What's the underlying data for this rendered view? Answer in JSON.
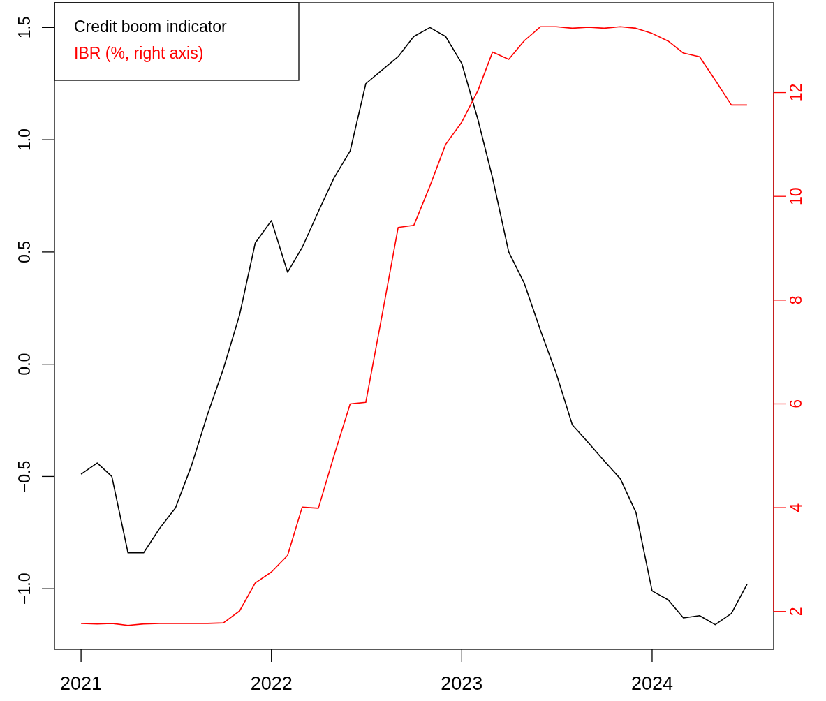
{
  "chart_data": {
    "type": "line",
    "x": [
      "2021-01",
      "2021-02",
      "2021-03",
      "2021-04",
      "2021-05",
      "2021-06",
      "2021-07",
      "2021-08",
      "2021-09",
      "2021-10",
      "2021-11",
      "2021-12",
      "2022-01",
      "2022-02",
      "2022-03",
      "2022-04",
      "2022-05",
      "2022-06",
      "2022-07",
      "2022-08",
      "2022-09",
      "2022-10",
      "2022-11",
      "2022-12",
      "2023-01",
      "2023-02",
      "2023-03",
      "2023-04",
      "2023-05",
      "2023-06",
      "2023-07",
      "2023-08",
      "2023-09",
      "2023-10",
      "2023-11",
      "2023-12",
      "2024-01",
      "2024-02",
      "2024-03",
      "2024-04",
      "2024-05",
      "2024-06",
      "2024-07"
    ],
    "series": [
      {
        "name": "Credit boom indicator",
        "color": "#000000",
        "values": [
          -0.49,
          -0.44,
          -0.5,
          -0.84,
          -0.84,
          -0.73,
          -0.64,
          -0.45,
          -0.22,
          -0.02,
          0.22,
          0.54,
          0.64,
          0.41,
          0.52,
          0.68,
          0.83,
          0.95,
          1.25,
          1.31,
          1.37,
          1.46,
          1.5,
          1.46,
          1.34,
          1.09,
          0.83,
          0.5,
          0.36,
          0.15,
          -0.04,
          -0.27,
          -0.35,
          -0.43,
          -0.51,
          -0.66,
          -1.01,
          -1.05,
          -1.13,
          -1.12,
          -1.16,
          -1.11,
          -0.98
        ]
      },
      {
        "name": "IBR (%, right axis)",
        "color": "#ff0000",
        "axis": "y2",
        "values": [
          1.77,
          1.76,
          1.77,
          1.73,
          1.76,
          1.77,
          1.77,
          1.77,
          1.77,
          1.78,
          2.01,
          2.55,
          2.76,
          3.08,
          4.01,
          3.99,
          5.0,
          6.0,
          6.03,
          7.7,
          9.4,
          9.44,
          10.2,
          11.0,
          11.43,
          12.04,
          12.78,
          12.64,
          13.0,
          13.27,
          13.27,
          13.24,
          13.26,
          13.24,
          13.27,
          13.24,
          13.14,
          12.99,
          12.76,
          12.69,
          12.24,
          11.76,
          11.76
        ]
      }
    ],
    "xlim": [
      "2020-11-11",
      "2024-08-21"
    ],
    "xticks": [
      {
        "value": "2021-01-01",
        "label": "2021"
      },
      {
        "value": "2022-01-01",
        "label": "2022"
      },
      {
        "value": "2023-01-01",
        "label": "2023"
      },
      {
        "value": "2024-01-01",
        "label": "2024"
      }
    ],
    "ylim": [
      -1.27,
      1.61
    ],
    "yticks": [
      {
        "value": -1,
        "label": "−1.0"
      },
      {
        "value": -0.5,
        "label": "−0.5"
      },
      {
        "value": 0,
        "label": "0.0"
      },
      {
        "value": 0.5,
        "label": "0.5"
      },
      {
        "value": 1,
        "label": "1.0"
      },
      {
        "value": 1.5,
        "label": "1.5"
      }
    ],
    "y2lim": [
      1.27,
      13.73
    ],
    "y2ticks": [
      2,
      4,
      6,
      8,
      10,
      12
    ],
    "legend": "top left",
    "grid": false
  }
}
